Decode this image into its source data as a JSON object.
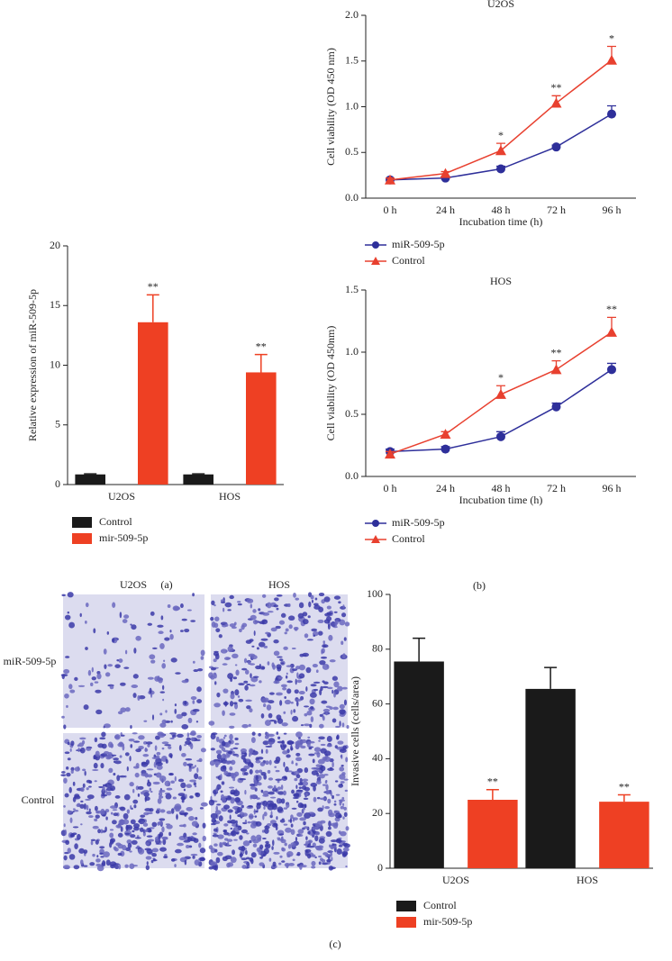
{
  "chart_data": [
    {
      "type": "bar",
      "y_label": "Relative expression of miR-509-5p",
      "categories": [
        "U2OS",
        "HOS"
      ],
      "series": [
        {
          "name": "Control",
          "color": "#1a1a1a",
          "values": [
            0.85,
            0.85
          ],
          "errors": [
            0.05,
            0.05
          ],
          "significance": [
            null,
            null
          ]
        },
        {
          "name": "mir-509-5p",
          "color": "#ee4023",
          "values": [
            13.6,
            9.4
          ],
          "errors": [
            2.3,
            1.5
          ],
          "significance": [
            "**",
            "**"
          ]
        }
      ],
      "ylim": [
        0,
        20
      ],
      "yticks": [
        0,
        5,
        10,
        15,
        20
      ]
    },
    {
      "type": "line",
      "title": "U2OS",
      "x_label": "Incubation time (h)",
      "y_label": "Cell viability (OD 450 nm)",
      "categories": [
        "0 h",
        "24 h",
        "48 h",
        "72 h",
        "96 h"
      ],
      "series": [
        {
          "name": "miR-509-5p",
          "color": "#2e2f9a",
          "marker": "circle",
          "values": [
            0.2,
            0.22,
            0.32,
            0.56,
            0.92
          ],
          "errors": [
            0.02,
            0.02,
            0.03,
            0.02,
            0.09
          ],
          "significance": [
            null,
            null,
            null,
            null,
            null
          ]
        },
        {
          "name": "Control",
          "color": "#e8402f",
          "marker": "triangle",
          "values": [
            0.2,
            0.27,
            0.52,
            1.04,
            1.51
          ],
          "errors": [
            0.02,
            0.02,
            0.08,
            0.08,
            0.15
          ],
          "significance": [
            null,
            null,
            "*",
            "**",
            "*"
          ]
        }
      ],
      "ylim": [
        0,
        2.0
      ],
      "yticks": [
        {
          "value": 0,
          "label": "0.0"
        },
        0.5,
        {
          "value": 1,
          "label": "1.0"
        },
        1.5,
        {
          "value": 2,
          "label": "2.0"
        }
      ]
    },
    {
      "type": "line",
      "title": "HOS",
      "x_label": "Incubation time (h)",
      "y_label": "Cell viability (OD 450nm)",
      "categories": [
        "0 h",
        "24 h",
        "48 h",
        "72 h",
        "96 h"
      ],
      "series": [
        {
          "name": "miR-509-5p",
          "color": "#2e2f9a",
          "marker": "circle",
          "values": [
            0.2,
            0.22,
            0.32,
            0.56,
            0.86
          ],
          "errors": [
            0.02,
            0.02,
            0.04,
            0.03,
            0.05
          ],
          "significance": [
            null,
            null,
            null,
            null,
            null
          ]
        },
        {
          "name": "Control",
          "color": "#e8402f",
          "marker": "triangle",
          "values": [
            0.18,
            0.34,
            0.66,
            0.86,
            1.16
          ],
          "errors": [
            0.02,
            0.02,
            0.07,
            0.07,
            0.12
          ],
          "significance": [
            null,
            null,
            "*",
            "**",
            "**"
          ]
        }
      ],
      "ylim": [
        0,
        1.5
      ],
      "yticks": [
        {
          "value": 0,
          "label": "0.0"
        },
        0.5,
        {
          "value": 1,
          "label": "1.0"
        },
        1.5
      ]
    },
    {
      "type": "bar",
      "y_label": "Invasive cells (cells/area)",
      "categories": [
        "U2OS",
        "HOS"
      ],
      "series": [
        {
          "name": "Control",
          "color": "#1a1a1a",
          "values": [
            75.5,
            65.5
          ],
          "errors": [
            8.5,
            7.8
          ],
          "significance": [
            null,
            null
          ]
        },
        {
          "name": "mir-509-5p",
          "color": "#ee4023",
          "values": [
            25,
            24.3
          ],
          "errors": [
            3.7,
            2.5
          ],
          "significance": [
            "**",
            "**"
          ]
        }
      ],
      "ylim": [
        0,
        100
      ],
      "yticks": [
        0,
        20,
        40,
        60,
        80,
        100
      ]
    }
  ],
  "panel_labels": [
    "(a)",
    "(b)",
    "(c)"
  ],
  "micrographs": {
    "columns": [
      "U2OS",
      "HOS"
    ],
    "rows": [
      "miR-509-5p",
      "Control"
    ]
  }
}
